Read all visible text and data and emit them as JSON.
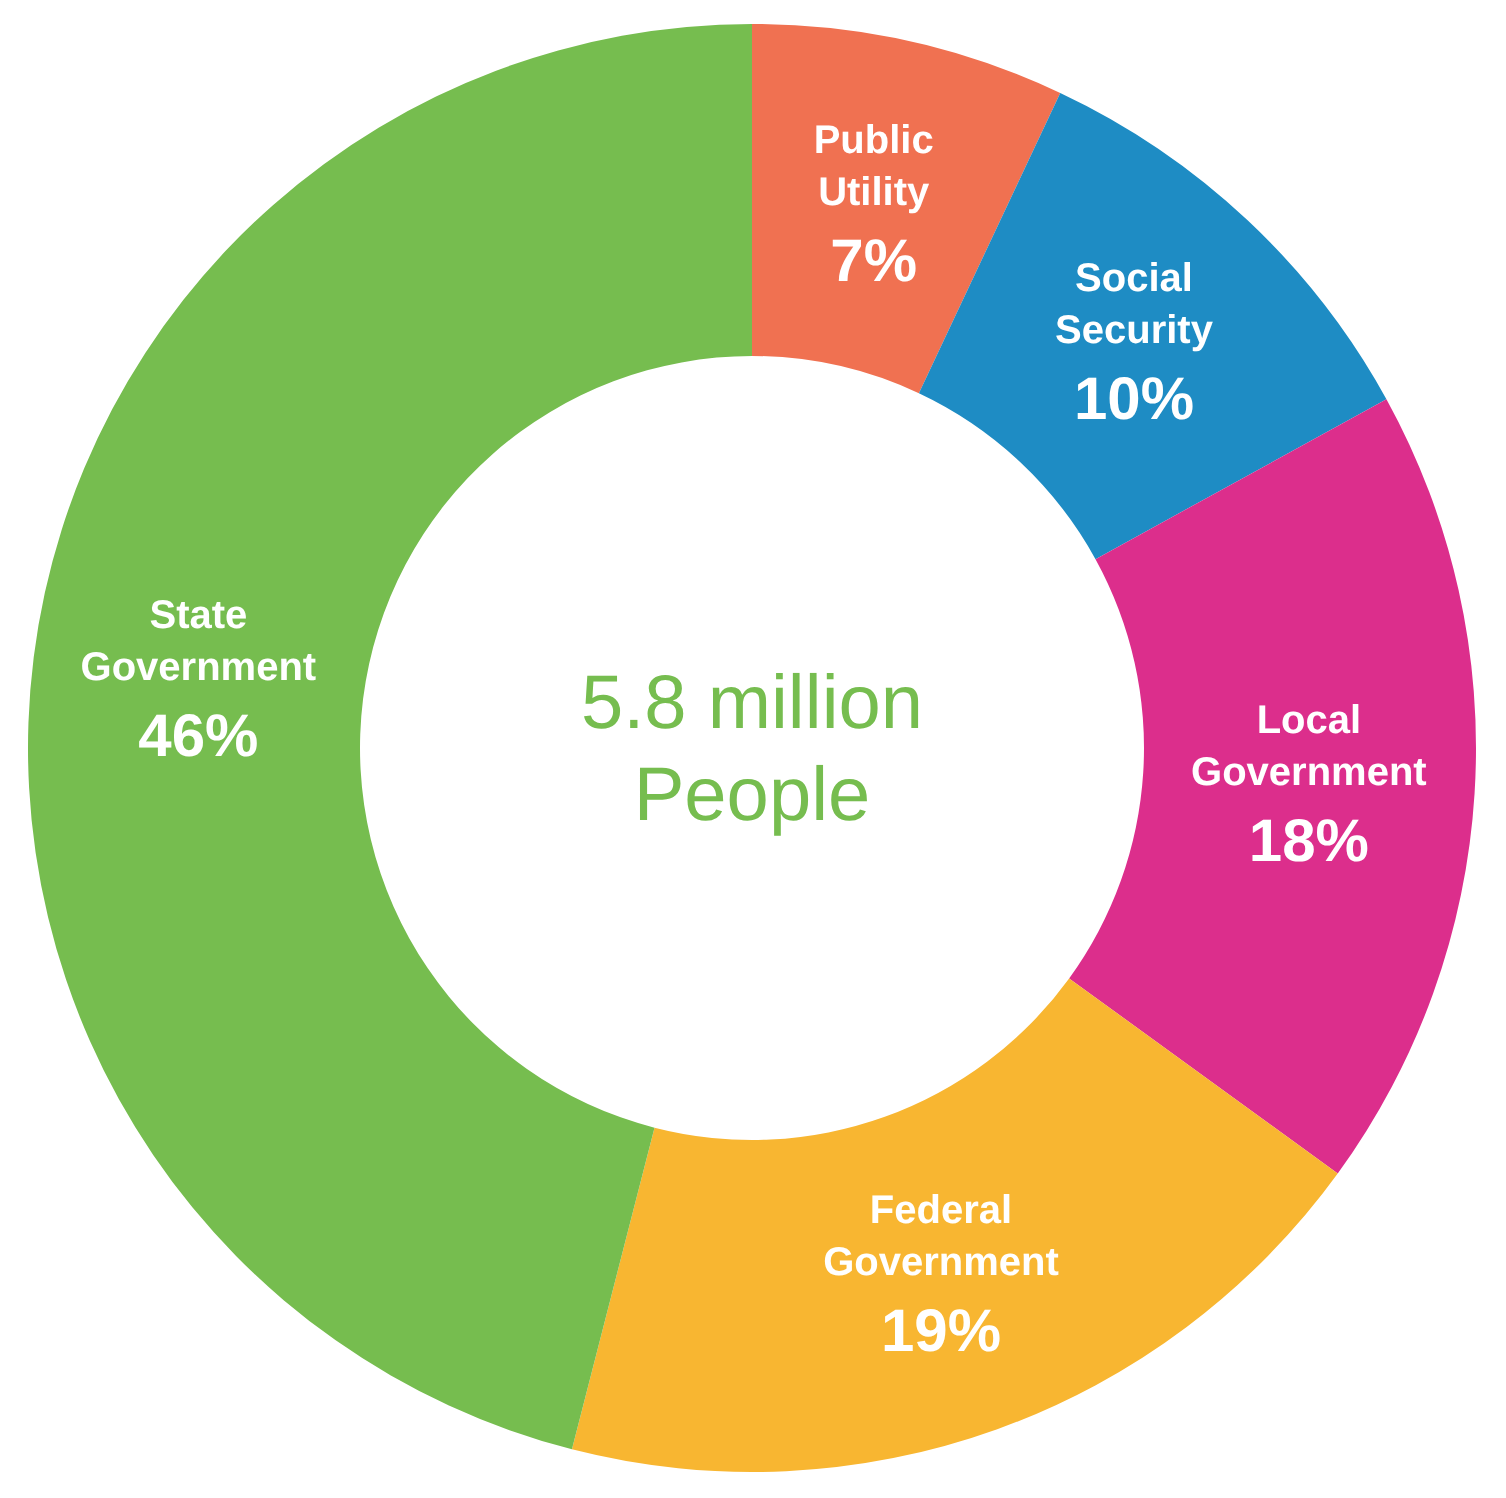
{
  "chart_data": {
    "type": "donut",
    "categories": [
      "Public Utility",
      "Social Security",
      "Local Government",
      "Federal Government",
      "State Government"
    ],
    "values": [
      7,
      10,
      18,
      19,
      46
    ],
    "value_labels": [
      "7%",
      "10%",
      "18%",
      "19%",
      "46%"
    ],
    "colors": [
      "#f07151",
      "#1e8cc4",
      "#dc2e8c",
      "#f8b631",
      "#76bd4f"
    ],
    "annotations": [
      "5.8 million People"
    ],
    "legend": false
  }
}
